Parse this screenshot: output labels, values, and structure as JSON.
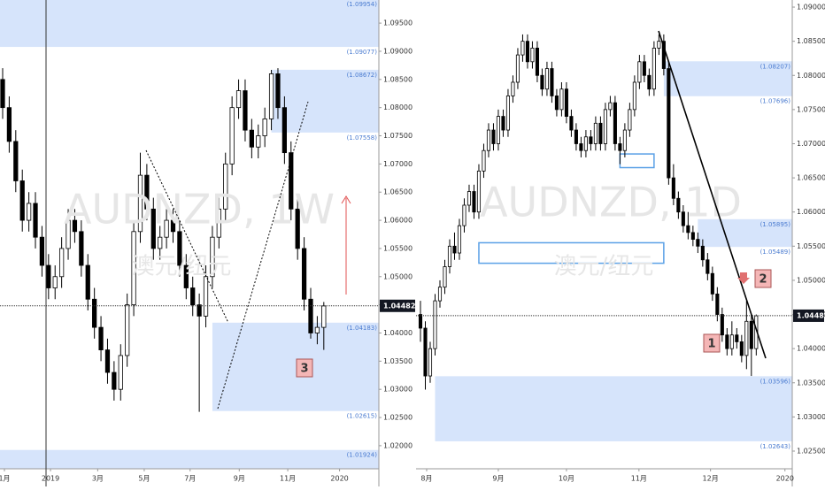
{
  "chart_data": [
    {
      "type": "candlestick",
      "watermark": "AUDNZD, 1W",
      "watermark_sub": "澳元/纽元",
      "xlim": [
        -0.405,
        57.4
      ],
      "ylim": [
        1.0159,
        1.0991
      ],
      "xticks": [
        {
          "value": 0.27,
          "label": "1月"
        },
        {
          "value": 7.3,
          "label": "2019"
        },
        {
          "value": 14.5,
          "label": "3月"
        },
        {
          "value": 21.6,
          "label": "5月"
        },
        {
          "value": 28.6,
          "label": "7月"
        },
        {
          "value": 36.1,
          "label": "9月"
        },
        {
          "value": 43.5,
          "label": "11月"
        },
        {
          "value": 51.4,
          "label": "2020"
        }
      ],
      "yticks": [
        {
          "value": 1.095,
          "label": "1.09500"
        },
        {
          "value": 1.09,
          "label": "1.09000"
        },
        {
          "value": 1.085,
          "label": "1.08500"
        },
        {
          "value": 1.08,
          "label": "1.08000"
        },
        {
          "value": 1.075,
          "label": "1.07500"
        },
        {
          "value": 1.07,
          "label": "1.07000"
        },
        {
          "value": 1.065,
          "label": "1.06500"
        },
        {
          "value": 1.06,
          "label": "1.06000"
        },
        {
          "value": 1.055,
          "label": "1.05500"
        },
        {
          "value": 1.05,
          "label": "1.05000"
        },
        {
          "value": 1.045,
          "label": "1.04500"
        },
        {
          "value": 1.04,
          "label": "1.04000"
        },
        {
          "value": 1.035,
          "label": "1.03500"
        },
        {
          "value": 1.03,
          "label": "1.03000"
        },
        {
          "value": 1.025,
          "label": "1.02500"
        },
        {
          "value": 1.02,
          "label": "1.02000"
        }
      ],
      "last_price": 1.04482,
      "up_color": "#ffffff",
      "down_color": "#000000",
      "zone_color": "#d6e4fb",
      "candles": [
        [
          1.085,
          1.087,
          1.078,
          1.08
        ],
        [
          1.08,
          1.082,
          1.072,
          1.074
        ],
        [
          1.074,
          1.076,
          1.065,
          1.067
        ],
        [
          1.067,
          1.069,
          1.058,
          1.06
        ],
        [
          1.06,
          1.065,
          1.058,
          1.063
        ],
        [
          1.063,
          1.065,
          1.055,
          1.057
        ],
        [
          1.057,
          1.059,
          1.05,
          1.052
        ],
        [
          1.052,
          1.054,
          1.046,
          1.048
        ],
        [
          1.048,
          1.052,
          1.046,
          1.05
        ],
        [
          1.05,
          1.057,
          1.048,
          1.055
        ],
        [
          1.055,
          1.062,
          1.053,
          1.06
        ],
        [
          1.06,
          1.062,
          1.056,
          1.058
        ],
        [
          1.058,
          1.06,
          1.05,
          1.052
        ],
        [
          1.052,
          1.054,
          1.044,
          1.046
        ],
        [
          1.046,
          1.048,
          1.039,
          1.041
        ],
        [
          1.041,
          1.043,
          1.035,
          1.037
        ],
        [
          1.037,
          1.039,
          1.031,
          1.033
        ],
        [
          1.033,
          1.035,
          1.028,
          1.03
        ],
        [
          1.03,
          1.038,
          1.028,
          1.036
        ],
        [
          1.036,
          1.047,
          1.034,
          1.045
        ],
        [
          1.045,
          1.06,
          1.043,
          1.058
        ],
        [
          1.058,
          1.072,
          1.056,
          1.068
        ],
        [
          1.068,
          1.07,
          1.06,
          1.062
        ],
        [
          1.062,
          1.064,
          1.053,
          1.055
        ],
        [
          1.055,
          1.059,
          1.053,
          1.057
        ],
        [
          1.057,
          1.062,
          1.055,
          1.06
        ],
        [
          1.06,
          1.062,
          1.056,
          1.058
        ],
        [
          1.058,
          1.06,
          1.05,
          1.052
        ],
        [
          1.052,
          1.054,
          1.046,
          1.048
        ],
        [
          1.048,
          1.05,
          1.043,
          1.045
        ],
        [
          1.045,
          1.047,
          1.026,
          1.043
        ],
        [
          1.043,
          1.052,
          1.041,
          1.05
        ],
        [
          1.05,
          1.059,
          1.048,
          1.057
        ],
        [
          1.057,
          1.064,
          1.055,
          1.062
        ],
        [
          1.062,
          1.072,
          1.06,
          1.07
        ],
        [
          1.07,
          1.082,
          1.068,
          1.08
        ],
        [
          1.08,
          1.085,
          1.078,
          1.083
        ],
        [
          1.083,
          1.085,
          1.074,
          1.076
        ],
        [
          1.076,
          1.078,
          1.071,
          1.073
        ],
        [
          1.073,
          1.077,
          1.071,
          1.075
        ],
        [
          1.075,
          1.08,
          1.073,
          1.078
        ],
        [
          1.078,
          1.0867,
          1.076,
          1.086
        ],
        [
          1.086,
          1.087,
          1.078,
          1.08
        ],
        [
          1.08,
          1.082,
          1.07,
          1.072
        ],
        [
          1.072,
          1.074,
          1.06,
          1.062
        ],
        [
          1.062,
          1.064,
          1.053,
          1.055
        ],
        [
          1.055,
          1.057,
          1.044,
          1.046
        ],
        [
          1.046,
          1.048,
          1.039,
          1.04
        ],
        [
          1.04,
          1.043,
          1.038,
          1.041
        ],
        [
          1.041,
          1.0455,
          1.037,
          1.0448
        ]
      ],
      "zones": [
        {
          "top": {
            "value": 1.09954,
            "label": "(1.09954)"
          },
          "bottom": {
            "value": 1.09077,
            "label": "(1.09077)"
          }
        },
        {
          "start": 41,
          "top": {
            "value": 1.08672,
            "label": "(1.08672)"
          },
          "bottom": {
            "value": 1.07558,
            "label": "(1.07558)"
          }
        },
        {
          "start": 32,
          "top": {
            "value": 1.04183,
            "label": "(1.04183)"
          },
          "bottom": {
            "value": 1.02615,
            "label": "(1.02615)"
          }
        },
        {
          "top": {
            "value": 1.01924,
            "label": "(1.01924)"
          }
        }
      ],
      "annotations": [
        "3"
      ]
    },
    {
      "type": "candlestick",
      "watermark": "AUDNZD, 1D",
      "watermark_sub": "澳元/纽元",
      "xlim": [
        -0.91,
        76.4
      ],
      "ylim": [
        1.02241,
        1.09104
      ],
      "xticks": [
        {
          "value": 1.27,
          "label": "8月"
        },
        {
          "value": 16,
          "label": "9月"
        },
        {
          "value": 30,
          "label": "10月"
        },
        {
          "value": 44.9,
          "label": "11月"
        },
        {
          "value": 59.6,
          "label": "12月"
        },
        {
          "value": 74.9,
          "label": "2020"
        }
      ],
      "yticks": [
        {
          "value": 1.09,
          "label": "1.09000"
        },
        {
          "value": 1.085,
          "label": "1.08500"
        },
        {
          "value": 1.08,
          "label": "1.08000"
        },
        {
          "value": 1.075,
          "label": "1.07500"
        },
        {
          "value": 1.07,
          "label": "1.07000"
        },
        {
          "value": 1.065,
          "label": "1.06500"
        },
        {
          "value": 1.06,
          "label": "1.06000"
        },
        {
          "value": 1.055,
          "label": "1.05500"
        },
        {
          "value": 1.05,
          "label": "1.05000"
        },
        {
          "value": 1.045,
          "label": "1.04500"
        },
        {
          "value": 1.04,
          "label": "1.04000"
        },
        {
          "value": 1.035,
          "label": "1.03500"
        },
        {
          "value": 1.03,
          "label": "1.03000"
        },
        {
          "value": 1.025,
          "label": "1.02500"
        }
      ],
      "last_price": 1.04482,
      "up_color": "#ffffff",
      "down_color": "#000000",
      "zone_color": "#d6e4fb",
      "candles": [
        [
          1.045,
          1.047,
          1.041,
          1.043
        ],
        [
          1.043,
          1.044,
          1.034,
          1.036
        ],
        [
          1.036,
          1.041,
          1.035,
          1.04
        ],
        [
          1.04,
          1.048,
          1.039,
          1.047
        ],
        [
          1.047,
          1.05,
          1.046,
          1.049
        ],
        [
          1.049,
          1.053,
          1.048,
          1.052
        ],
        [
          1.052,
          1.056,
          1.051,
          1.055
        ],
        [
          1.055,
          1.057,
          1.053,
          1.054
        ],
        [
          1.054,
          1.059,
          1.053,
          1.058
        ],
        [
          1.058,
          1.062,
          1.057,
          1.061
        ],
        [
          1.061,
          1.064,
          1.06,
          1.063
        ],
        [
          1.063,
          1.064,
          1.059,
          1.06
        ],
        [
          1.06,
          1.067,
          1.059,
          1.066
        ],
        [
          1.066,
          1.07,
          1.065,
          1.069
        ],
        [
          1.069,
          1.073,
          1.068,
          1.072
        ],
        [
          1.072,
          1.073,
          1.069,
          1.07
        ],
        [
          1.07,
          1.075,
          1.069,
          1.074
        ],
        [
          1.074,
          1.075,
          1.071,
          1.072
        ],
        [
          1.072,
          1.078,
          1.071,
          1.077
        ],
        [
          1.077,
          1.08,
          1.076,
          1.079
        ],
        [
          1.079,
          1.084,
          1.078,
          1.083
        ],
        [
          1.083,
          1.086,
          1.082,
          1.085
        ],
        [
          1.085,
          1.086,
          1.081,
          1.082
        ],
        [
          1.082,
          1.085,
          1.081,
          1.084
        ],
        [
          1.084,
          1.085,
          1.079,
          1.08
        ],
        [
          1.08,
          1.081,
          1.077,
          1.078
        ],
        [
          1.078,
          1.082,
          1.077,
          1.081
        ],
        [
          1.081,
          1.082,
          1.076,
          1.077
        ],
        [
          1.077,
          1.078,
          1.074,
          1.075
        ],
        [
          1.075,
          1.079,
          1.074,
          1.078
        ],
        [
          1.078,
          1.079,
          1.073,
          1.074
        ],
        [
          1.074,
          1.075,
          1.071,
          1.072
        ],
        [
          1.072,
          1.073,
          1.069,
          1.07
        ],
        [
          1.07,
          1.071,
          1.068,
          1.069
        ],
        [
          1.069,
          1.072,
          1.068,
          1.071
        ],
        [
          1.071,
          1.072,
          1.069,
          1.07
        ],
        [
          1.07,
          1.074,
          1.069,
          1.073
        ],
        [
          1.073,
          1.074,
          1.069,
          1.07
        ],
        [
          1.07,
          1.076,
          1.069,
          1.075
        ],
        [
          1.075,
          1.077,
          1.074,
          1.076
        ],
        [
          1.076,
          1.077,
          1.069,
          1.07
        ],
        [
          1.07,
          1.071,
          1.067,
          1.069
        ],
        [
          1.069,
          1.073,
          1.068,
          1.072
        ],
        [
          1.072,
          1.076,
          1.071,
          1.075
        ],
        [
          1.075,
          1.08,
          1.074,
          1.079
        ],
        [
          1.079,
          1.083,
          1.078,
          1.082
        ],
        [
          1.082,
          1.083,
          1.079,
          1.08
        ],
        [
          1.08,
          1.081,
          1.077,
          1.078
        ],
        [
          1.078,
          1.085,
          1.077,
          1.084
        ],
        [
          1.084,
          1.086,
          1.083,
          1.085
        ],
        [
          1.085,
          1.086,
          1.08,
          1.081
        ],
        [
          1.081,
          1.082,
          1.064,
          1.065
        ],
        [
          1.065,
          1.067,
          1.061,
          1.062
        ],
        [
          1.062,
          1.063,
          1.059,
          1.06
        ],
        [
          1.06,
          1.061,
          1.057,
          1.058
        ],
        [
          1.058,
          1.06,
          1.056,
          1.057
        ],
        [
          1.057,
          1.058,
          1.055,
          1.056
        ],
        [
          1.056,
          1.057,
          1.054,
          1.055
        ],
        [
          1.055,
          1.056,
          1.052,
          1.053
        ],
        [
          1.053,
          1.054,
          1.05,
          1.051
        ],
        [
          1.051,
          1.052,
          1.047,
          1.048
        ],
        [
          1.048,
          1.049,
          1.044,
          1.045
        ],
        [
          1.045,
          1.046,
          1.041,
          1.042
        ],
        [
          1.042,
          1.043,
          1.039,
          1.04
        ],
        [
          1.04,
          1.044,
          1.039,
          1.042
        ],
        [
          1.042,
          1.043,
          1.04,
          1.041
        ],
        [
          1.041,
          1.042,
          1.038,
          1.039
        ],
        [
          1.039,
          1.047,
          1.037,
          1.044
        ],
        [
          1.044,
          1.045,
          1.036,
          1.04
        ],
        [
          1.04,
          1.045,
          1.039,
          1.0448
        ]
      ],
      "zones": [
        {
          "start": 50,
          "top": {
            "value": 1.08207,
            "label": "(1.08207)"
          },
          "bottom": {
            "value": 1.07696,
            "label": "(1.07696)"
          }
        },
        {
          "start": 57,
          "top": {
            "value": 1.05895,
            "label": "(1.05895)"
          },
          "bottom": {
            "value": 1.05489,
            "label": "(1.05489)"
          }
        },
        {
          "start": 3,
          "top": {
            "value": 1.03596,
            "label": "(1.03596)"
          },
          "bottom": {
            "value": 1.02643,
            "label": "(1.02643)"
          }
        }
      ],
      "boxes": [
        {
          "start": 12,
          "end": 50,
          "top": 1.0555,
          "bottom": 1.0525
        },
        {
          "start": 41,
          "end": 48,
          "top": 1.0685,
          "bottom": 1.0665
        }
      ],
      "annotations": [
        "1",
        "2"
      ]
    }
  ]
}
